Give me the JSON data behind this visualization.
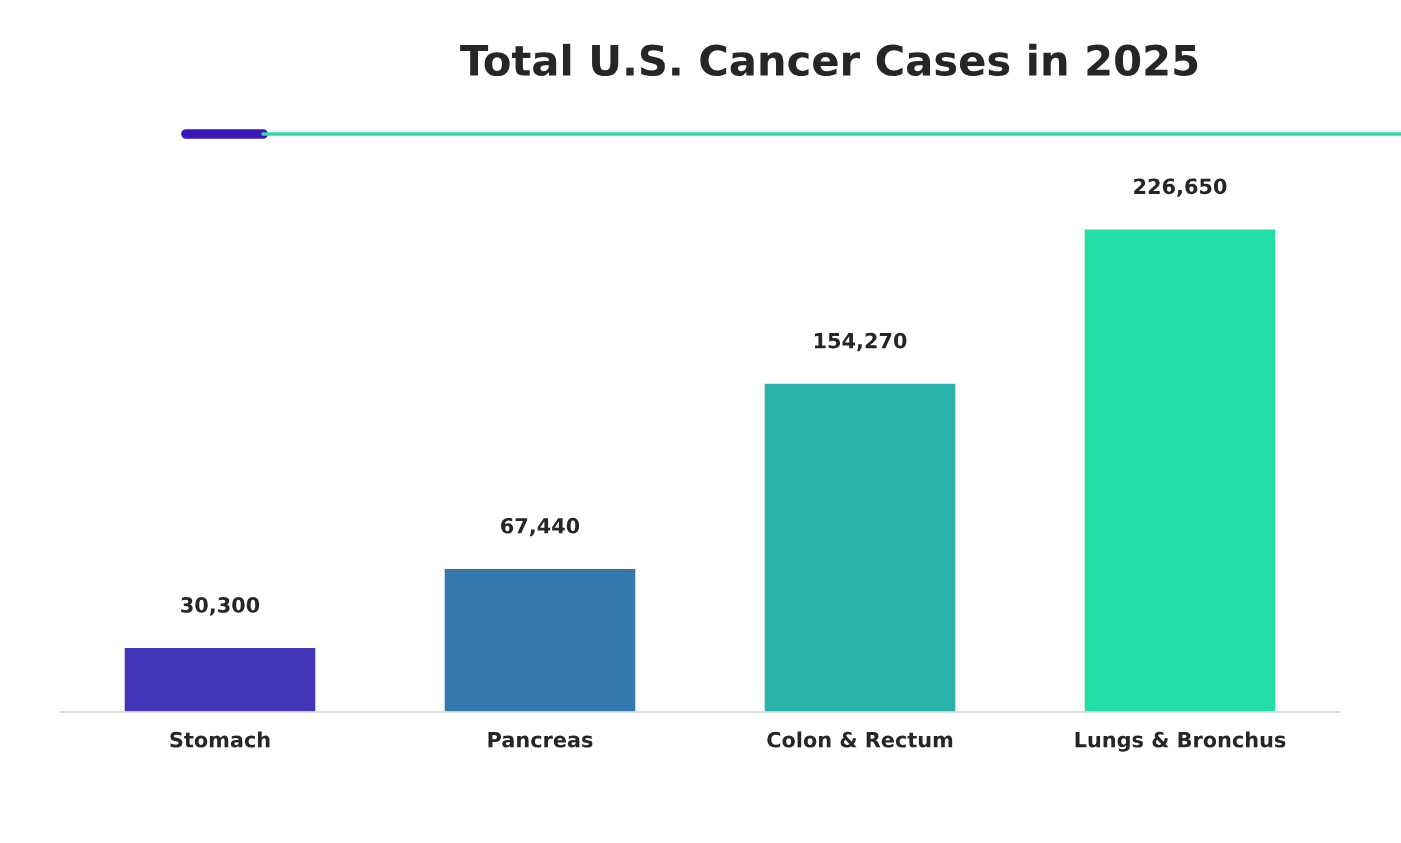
{
  "chart_data": {
    "type": "bar",
    "title": "Total U.S. Cancer Cases in 2025",
    "categories": [
      "Stomach",
      "Pancreas",
      "Colon & Rectum",
      "Lungs & Bronchus"
    ],
    "values": [
      30300,
      67440,
      154270,
      226650
    ],
    "colors": [
      "#4335b8",
      "#3379ae",
      "#2bb2ab",
      "#24dea8"
    ],
    "value_labels": [
      "30,300",
      "67,440",
      "154,270",
      "226,650"
    ],
    "grid": false,
    "legend": false
  }
}
